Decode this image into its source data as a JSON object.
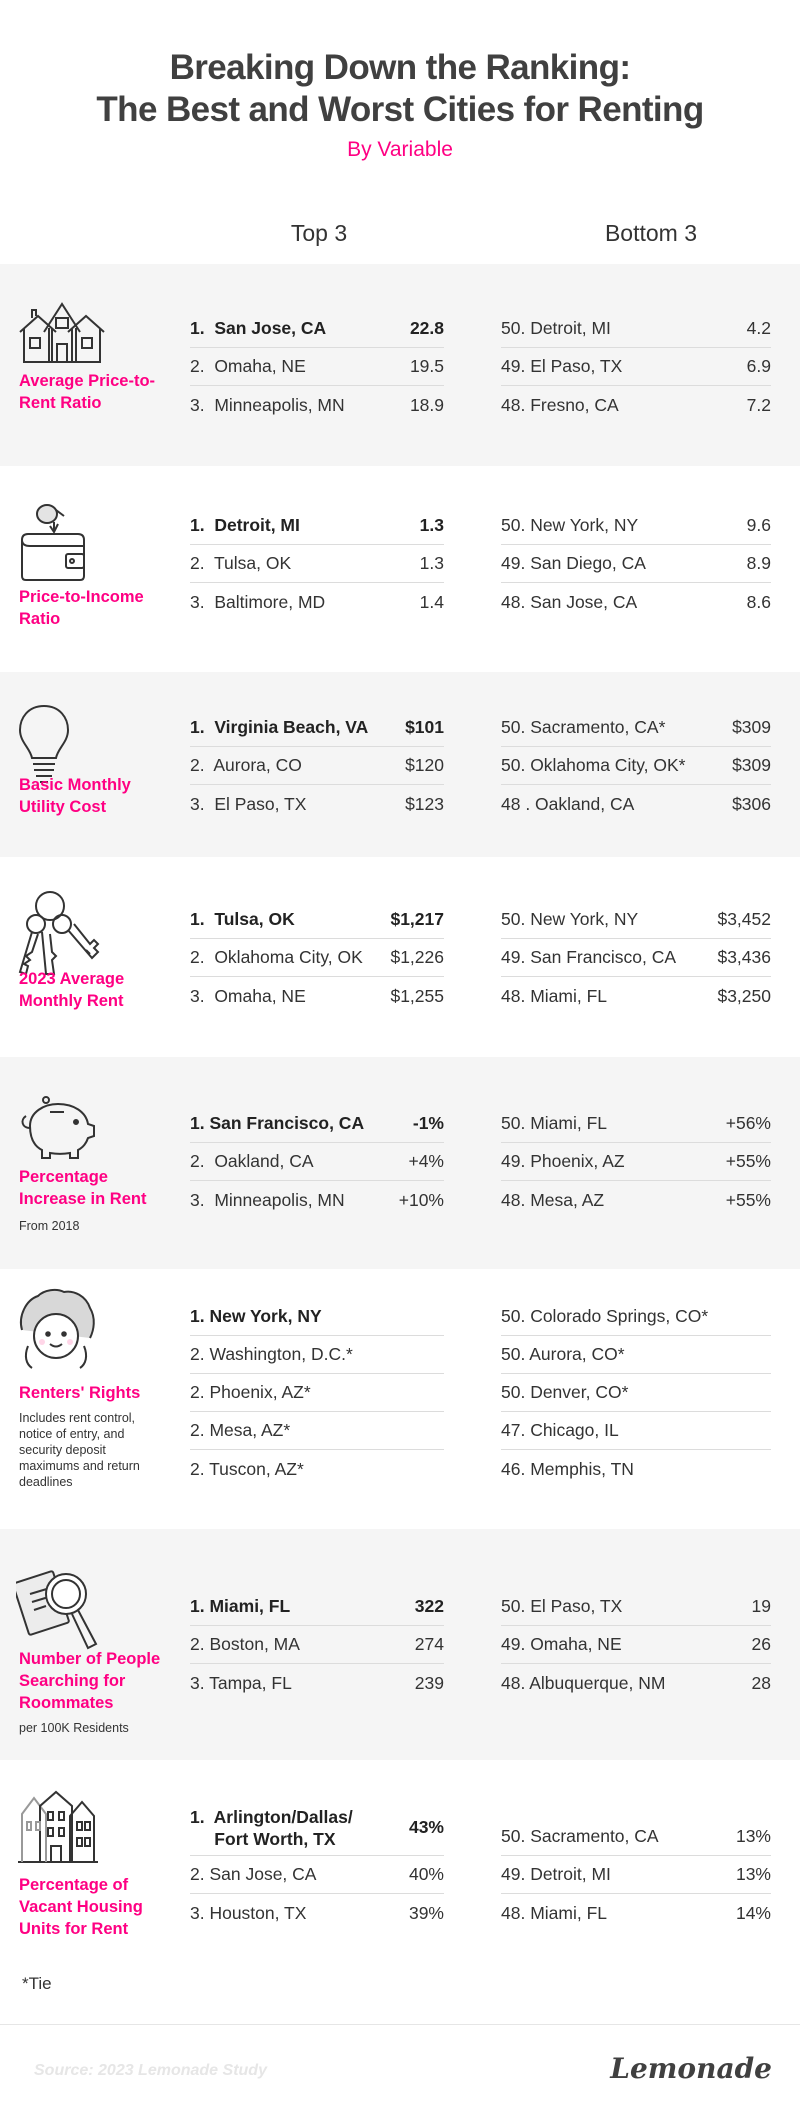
{
  "header": {
    "title_line1": "Breaking Down the Ranking:",
    "title_line2": "The Best and Worst Cities for Renting",
    "subtitle": "By Variable",
    "top_label": "Top 3",
    "bottom_label": "Bottom 3"
  },
  "colors": {
    "accent": "#ff0083",
    "shade": "#f5f5f5",
    "text": "#333333"
  },
  "sections": [
    {
      "label": "Average Price-to-Rent Ratio",
      "note": "",
      "icon": "house-icon",
      "top": [
        {
          "name": "1.  San Jose, CA",
          "value": "22.8"
        },
        {
          "name": "2.  Omaha, NE",
          "value": "19.5"
        },
        {
          "name": "3.  Minneapolis, MN",
          "value": "18.9"
        }
      ],
      "bottom": [
        {
          "name": "50. Detroit, MI",
          "value": "4.2"
        },
        {
          "name": "49. El Paso, TX",
          "value": "6.9"
        },
        {
          "name": "48. Fresno, CA",
          "value": "7.2"
        }
      ]
    },
    {
      "label": "Price-to-Income Ratio",
      "note": "",
      "icon": "wallet-coin-icon",
      "top": [
        {
          "name": "1.  Detroit, MI",
          "value": "1.3"
        },
        {
          "name": "2.  Tulsa, OK",
          "value": "1.3"
        },
        {
          "name": "3.  Baltimore, MD",
          "value": "1.4"
        }
      ],
      "bottom": [
        {
          "name": "50. New York, NY",
          "value": "9.6"
        },
        {
          "name": "49. San Diego, CA",
          "value": "8.9"
        },
        {
          "name": "48. San Jose, CA",
          "value": "8.6"
        }
      ]
    },
    {
      "label": "Basic Monthly Utility Cost",
      "note": "",
      "icon": "lightbulb-icon",
      "top": [
        {
          "name": "1.  Virginia Beach, VA",
          "value": "$101"
        },
        {
          "name": "2.  Aurora, CO",
          "value": "$120"
        },
        {
          "name": "3.  El Paso, TX",
          "value": "$123"
        }
      ],
      "bottom": [
        {
          "name": "50. Sacramento, CA*",
          "value": "$309"
        },
        {
          "name": "50. Oklahoma City, OK*",
          "value": "$309"
        },
        {
          "name": "48 . Oakland, CA",
          "value": "$306"
        }
      ]
    },
    {
      "label": "2023 Average Monthly Rent",
      "note": "",
      "icon": "keys-icon",
      "top": [
        {
          "name": "1.  Tulsa, OK",
          "value": "$1,217"
        },
        {
          "name": "2.  Oklahoma City, OK",
          "value": "$1,226"
        },
        {
          "name": "3.  Omaha, NE",
          "value": "$1,255"
        }
      ],
      "bottom": [
        {
          "name": "50. New York, NY",
          "value": "$3,452"
        },
        {
          "name": "49. San Francisco, CA",
          "value": "$3,436"
        },
        {
          "name": "48. Miami, FL",
          "value": "$3,250"
        }
      ]
    },
    {
      "label": "Percentage Increase in Rent",
      "note": "From 2018",
      "icon": "piggy-bank-icon",
      "top": [
        {
          "name": "1. San Francisco, CA",
          "value": "-1%"
        },
        {
          "name": "2.  Oakland, CA",
          "value": "+4%"
        },
        {
          "name": "3.  Minneapolis, MN",
          "value": "+10%"
        }
      ],
      "bottom": [
        {
          "name": "50. Miami, FL",
          "value": "+56%"
        },
        {
          "name": "49. Phoenix, AZ",
          "value": "+55%"
        },
        {
          "name": "48. Mesa, AZ",
          "value": "+55%"
        }
      ]
    },
    {
      "label": "Renters' Rights",
      "note": "Includes rent control, notice of entry, and security deposit maximums and return deadlines",
      "icon": "person-face-icon",
      "top": [
        {
          "name": "1. New York, NY",
          "value": ""
        },
        {
          "name": "2. Washington, D.C.*",
          "value": ""
        },
        {
          "name": "2. Phoenix, AZ*",
          "value": ""
        },
        {
          "name": "2. Mesa, AZ*",
          "value": ""
        },
        {
          "name": "2. Tuscon, AZ*",
          "value": ""
        }
      ],
      "bottom": [
        {
          "name": "50. Colorado Springs, CO*",
          "value": ""
        },
        {
          "name": "50. Aurora, CO*",
          "value": ""
        },
        {
          "name": "50. Denver, CO*",
          "value": ""
        },
        {
          "name": "47. Chicago, IL",
          "value": ""
        },
        {
          "name": "46. Memphis, TN",
          "value": ""
        }
      ]
    },
    {
      "label": "Number of People Searching for Roommates",
      "note": "per 100K Residents",
      "icon": "magnifier-document-icon",
      "top": [
        {
          "name": "1. Miami, FL",
          "value": "322"
        },
        {
          "name": "2. Boston, MA",
          "value": "274"
        },
        {
          "name": "3. Tampa, FL",
          "value": "239"
        }
      ],
      "bottom": [
        {
          "name": "50. El Paso, TX",
          "value": "19"
        },
        {
          "name": "49. Omaha, NE",
          "value": "26"
        },
        {
          "name": "48. Albuquerque, NM",
          "value": "28"
        }
      ]
    },
    {
      "label": "Percentage of Vacant Housing Units for Rent",
      "note": "",
      "icon": "buildings-icon",
      "top": [
        {
          "name": "1.  Arlington/Dallas/\n     Fort Worth, TX",
          "value": "43%"
        },
        {
          "name": "2. San Jose, CA",
          "value": "40%"
        },
        {
          "name": "3. Houston, TX",
          "value": "39%"
        }
      ],
      "bottom": [
        {
          "name": "50. Sacramento, CA",
          "value": "13%"
        },
        {
          "name": "49. Detroit, MI",
          "value": "13%"
        },
        {
          "name": "48. Miami, FL",
          "value": "14%"
        }
      ]
    }
  ],
  "footnote": "*Tie",
  "source": "Source: 2023 Lemonade Study",
  "logo": "Lemonade"
}
